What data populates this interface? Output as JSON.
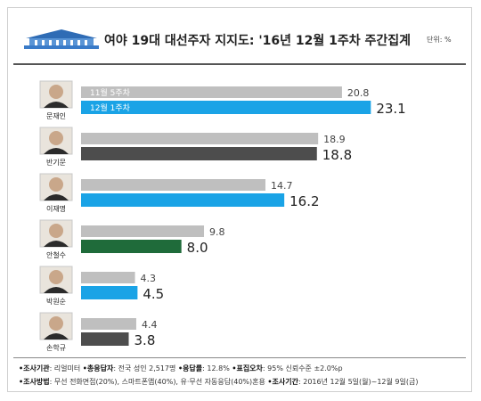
{
  "header": {
    "title": "여야 19대 대선주자 지지도: '16년 12월 1주차 주간집계",
    "unit": "단위: %",
    "logo_icon": "blue-house-icon"
  },
  "colors": {
    "prev": "#bfbfbf",
    "blue": "#1aa3e6",
    "dark": "#4d4d4d",
    "green": "#1f6b3a"
  },
  "chart_data": {
    "type": "bar",
    "orientation": "horizontal",
    "categories": [
      "문재인",
      "반기문",
      "이재명",
      "안철수",
      "박원순",
      "손학규"
    ],
    "series": [
      {
        "name": "11월 5주차",
        "values": [
          20.8,
          18.9,
          14.7,
          9.8,
          4.3,
          4.4
        ]
      },
      {
        "name": "12월 1주차",
        "values": [
          23.1,
          18.8,
          16.2,
          8.0,
          4.5,
          3.8
        ]
      }
    ],
    "current_colors": [
      "blue",
      "dark",
      "blue",
      "green",
      "blue",
      "dark"
    ],
    "xlim": [
      0,
      24
    ],
    "grid": false,
    "legend": "inside-first-bars"
  },
  "footer": {
    "line1": [
      {
        "label": "•조사기관",
        "value": ": 리얼미터"
      },
      {
        "label": "•총응답자",
        "value": ": 전국 성인 2,517명"
      },
      {
        "label": "•응답률",
        "value": ": 12.8%"
      },
      {
        "label": "•표집오차",
        "value": ": 95% 신뢰수준 ±2.0%p"
      }
    ],
    "line2": [
      {
        "label": "•조사방법",
        "value": ": 무선 전화면접(20%), 스마트폰앱(40%), 유·무선 자동응답(40%)혼용"
      },
      {
        "label": "•조사기간",
        "value": ": 2016년 12월 5일(월)~12월 9일(금)"
      }
    ]
  }
}
